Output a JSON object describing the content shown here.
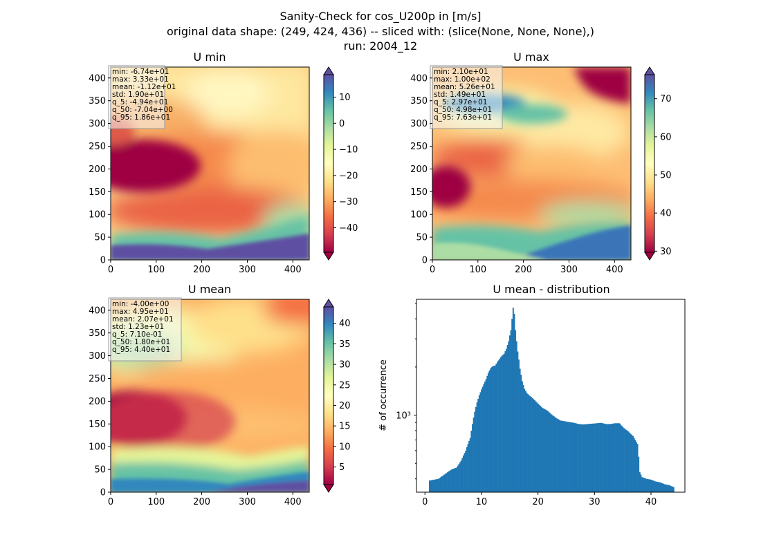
{
  "figure": {
    "title_lines": [
      "Sanity-Check for cos_U200p in [m/s]",
      "original data shape: (249, 424, 436) -- sliced with: (slice(None, None, None),)",
      "run: 2004_12"
    ]
  },
  "panels": [
    {
      "title": "U min",
      "xticks": [
        0,
        100,
        200,
        300,
        400
      ],
      "yticks": [
        0,
        50,
        100,
        150,
        200,
        250,
        300,
        350,
        400
      ],
      "xlim": [
        0,
        436
      ],
      "ylim": [
        0,
        424
      ],
      "stats": [
        "min: -6.74e+01",
        "max: 3.33e+01",
        "mean: -1.12e+01",
        "std: 1.90e+01",
        "q_5: -4.94e+01",
        "q_50: -7.04e+00",
        "q_95: 1.86e+01"
      ],
      "colorbar": {
        "range": [
          -49.4,
          18.6
        ],
        "ticks": [
          -40,
          -30,
          -20,
          -10,
          0,
          10
        ],
        "cmap": "Spectral",
        "extend": "both"
      }
    },
    {
      "title": "U max",
      "xticks": [
        0,
        100,
        200,
        300,
        400
      ],
      "yticks": [
        0,
        50,
        100,
        150,
        200,
        250,
        300,
        350,
        400
      ],
      "xlim": [
        0,
        436
      ],
      "ylim": [
        0,
        424
      ],
      "stats": [
        "min: 2.10e+01",
        "max: 1.00e+02",
        "mean: 5.26e+01",
        "std: 1.49e+01",
        "q_5: 2.97e+01",
        "q_50: 4.98e+01",
        "q_95: 7.63e+01"
      ],
      "colorbar": {
        "range": [
          29.7,
          76.3
        ],
        "ticks": [
          30,
          40,
          50,
          60,
          70
        ],
        "cmap": "Spectral",
        "extend": "both"
      }
    },
    {
      "title": "U mean",
      "xticks": [
        0,
        100,
        200,
        300,
        400
      ],
      "yticks": [
        0,
        50,
        100,
        150,
        200,
        250,
        300,
        350,
        400
      ],
      "xlim": [
        0,
        436
      ],
      "ylim": [
        0,
        424
      ],
      "stats": [
        "min: -4.00e+00",
        "max: 4.95e+01",
        "mean: 2.07e+01",
        "std: 1.23e+01",
        "q_5: 7.10e-01",
        "q_50: 1.80e+01",
        "q_95: 4.40e+01"
      ],
      "colorbar": {
        "range": [
          0.71,
          44.0
        ],
        "ticks": [
          5,
          10,
          15,
          20,
          25,
          30,
          35,
          40
        ],
        "cmap": "Spectral",
        "extend": "both"
      }
    }
  ],
  "chart_data": {
    "type": "bar",
    "title": "U mean - distribution",
    "xlabel": "",
    "ylabel": "# of occurrence",
    "yscale": "log",
    "xlim": [
      -1.5,
      46
    ],
    "ylim": [
      330,
      5300
    ],
    "xticks": [
      0,
      10,
      20,
      30,
      40
    ],
    "ytick_labels": [
      "10³"
    ],
    "ytick_value": 1000,
    "color": "#1f77b4",
    "bin_width": 0.2,
    "bins_x": [
      0.8,
      1.6,
      2.4,
      3.2,
      4.0,
      4.8,
      5.6,
      6.4,
      7.2,
      8.0,
      8.4,
      8.8,
      9.2,
      9.6,
      10.0,
      10.4,
      10.8,
      11.2,
      11.6,
      12.0,
      12.4,
      12.8,
      13.2,
      13.6,
      14.0,
      14.4,
      14.8,
      15.2,
      15.4,
      15.6,
      15.8,
      16.0,
      16.2,
      16.4,
      16.8,
      17.2,
      17.6,
      18.0,
      18.4,
      18.8,
      19.2,
      19.6,
      20.0,
      20.8,
      21.6,
      22.4,
      23.2,
      24.0,
      24.8,
      25.6,
      26.4,
      27.2,
      28.0,
      28.8,
      29.6,
      30.4,
      31.2,
      32.0,
      32.8,
      33.6,
      34.4,
      35.2,
      36.0,
      36.8,
      37.6,
      38.0,
      38.4,
      39.2,
      40.0,
      40.8,
      41.6,
      42.4,
      43.2,
      43.6,
      44.0
    ],
    "bins_y": [
      390,
      395,
      400,
      420,
      440,
      460,
      470,
      520,
      600,
      720,
      880,
      1050,
      1200,
      1330,
      1450,
      1560,
      1680,
      1840,
      1960,
      2030,
      2040,
      2150,
      2250,
      2350,
      2420,
      2600,
      2900,
      3400,
      4000,
      4700,
      4300,
      3400,
      2900,
      2500,
      1950,
      1630,
      1460,
      1380,
      1330,
      1300,
      1260,
      1220,
      1180,
      1110,
      1070,
      1010,
      960,
      925,
      915,
      905,
      895,
      880,
      875,
      880,
      885,
      890,
      895,
      880,
      880,
      890,
      890,
      830,
      790,
      740,
      660,
      440,
      410,
      400,
      395,
      385,
      380,
      370,
      365,
      360,
      355
    ]
  }
}
